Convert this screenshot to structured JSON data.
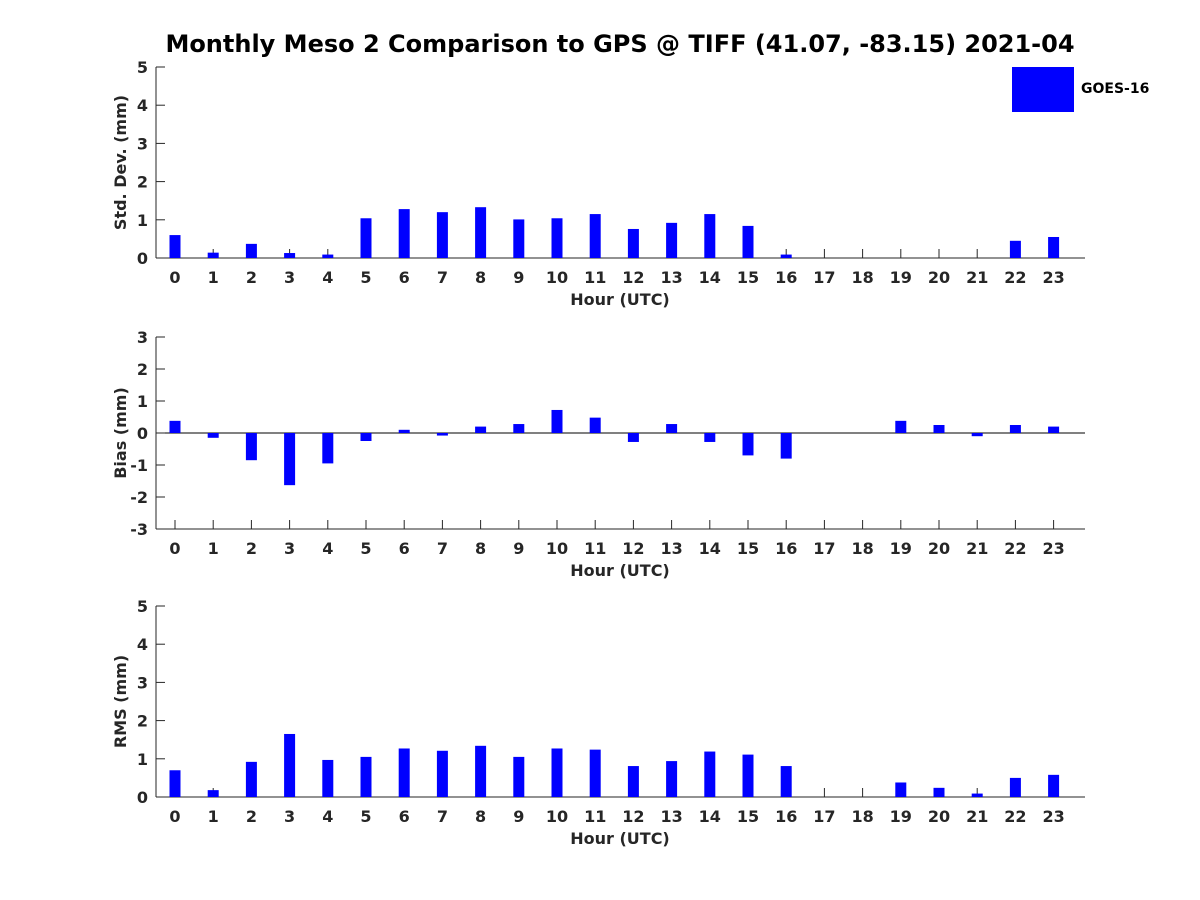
{
  "title": "Monthly Meso 2 Comparison to GPS @ TIFF (41.07, -83.15) 2021-04",
  "legend": {
    "label": "GOES-16",
    "color": "#0000ff"
  },
  "chart_data": [
    {
      "type": "bar",
      "categories": [
        "0",
        "1",
        "2",
        "3",
        "4",
        "5",
        "6",
        "7",
        "8",
        "9",
        "10",
        "11",
        "12",
        "13",
        "14",
        "15",
        "16",
        "17",
        "18",
        "19",
        "20",
        "21",
        "22",
        "23"
      ],
      "series": [
        {
          "name": "GOES-16",
          "values": [
            0.6,
            0.14,
            0.37,
            0.13,
            0.09,
            1.04,
            1.28,
            1.2,
            1.33,
            1.01,
            1.04,
            1.15,
            0.76,
            0.92,
            1.15,
            0.84,
            0.09,
            null,
            null,
            null,
            null,
            null,
            0.45,
            0.55
          ]
        }
      ],
      "title": "",
      "xlabel": "Hour (UTC)",
      "ylabel": "Std. Dev. (mm)",
      "ylim": [
        0,
        5
      ],
      "yticks": [
        "0",
        "1",
        "2",
        "3",
        "4",
        "5"
      ],
      "ytick_values": [
        0,
        1,
        2,
        3,
        4,
        5
      ]
    },
    {
      "type": "bar",
      "categories": [
        "0",
        "1",
        "2",
        "3",
        "4",
        "5",
        "6",
        "7",
        "8",
        "9",
        "10",
        "11",
        "12",
        "13",
        "14",
        "15",
        "16",
        "17",
        "18",
        "19",
        "20",
        "21",
        "22",
        "23"
      ],
      "series": [
        {
          "name": "GOES-16",
          "values": [
            0.38,
            -0.15,
            -0.85,
            -1.63,
            -0.95,
            -0.25,
            0.1,
            -0.08,
            0.2,
            0.28,
            0.72,
            0.48,
            -0.28,
            0.28,
            -0.28,
            -0.7,
            -0.8,
            null,
            null,
            0.38,
            0.25,
            -0.1,
            0.25,
            0.2
          ]
        }
      ],
      "title": "",
      "xlabel": "Hour (UTC)",
      "ylabel": "Bias (mm)",
      "ylim": [
        -3,
        3
      ],
      "yticks": [
        "-3",
        "-2",
        "-1",
        "0",
        "1",
        "2",
        "3"
      ],
      "ytick_values": [
        -3,
        -2,
        -1,
        0,
        1,
        2,
        3
      ]
    },
    {
      "type": "bar",
      "categories": [
        "0",
        "1",
        "2",
        "3",
        "4",
        "5",
        "6",
        "7",
        "8",
        "9",
        "10",
        "11",
        "12",
        "13",
        "14",
        "15",
        "16",
        "17",
        "18",
        "19",
        "20",
        "21",
        "22",
        "23"
      ],
      "series": [
        {
          "name": "GOES-16",
          "values": [
            0.7,
            0.18,
            0.92,
            1.65,
            0.97,
            1.05,
            1.27,
            1.21,
            1.34,
            1.05,
            1.27,
            1.24,
            0.81,
            0.94,
            1.19,
            1.11,
            0.81,
            null,
            null,
            0.38,
            0.24,
            0.09,
            0.5,
            0.58
          ]
        }
      ],
      "title": "",
      "xlabel": "Hour (UTC)",
      "ylabel": "RMS (mm)",
      "ylim": [
        0,
        5
      ],
      "yticks": [
        "0",
        "1",
        "2",
        "3",
        "4",
        "5"
      ],
      "ytick_values": [
        0,
        1,
        2,
        3,
        4,
        5
      ]
    }
  ]
}
